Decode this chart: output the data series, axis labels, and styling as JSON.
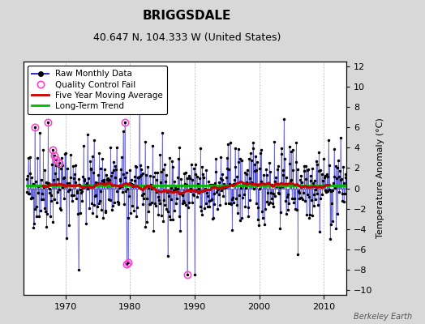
{
  "title": "BRIGGSDALE",
  "subtitle": "40.647 N, 104.333 W (United States)",
  "ylabel": "Temperature Anomaly (°C)",
  "watermark": "Berkeley Earth",
  "ylim": [
    -10.5,
    12.5
  ],
  "yticks": [
    -10,
    -8,
    -6,
    -4,
    -2,
    0,
    2,
    4,
    6,
    8,
    10,
    12
  ],
  "xlim": [
    1963.5,
    2013.5
  ],
  "xticks": [
    1970,
    1980,
    1990,
    2000,
    2010
  ],
  "start_year": 1964,
  "n_months": 594,
  "bg_color": "#d8d8d8",
  "plot_bg_color": "#ffffff",
  "grid_color": "#bbbbbb",
  "line_color": "#3333cc",
  "line_alpha": 0.75,
  "ma_color": "#cc0000",
  "trend_color": "#00bb00",
  "trend_y": 0.3,
  "qc_color": "#ff44cc",
  "legend_items": [
    "Raw Monthly Data",
    "Quality Control Fail",
    "Five Year Moving Average",
    "Long-Term Trend"
  ],
  "title_fontsize": 11,
  "subtitle_fontsize": 9,
  "tick_fontsize": 8,
  "ylabel_fontsize": 8,
  "legend_fontsize": 7.5,
  "watermark_fontsize": 7
}
